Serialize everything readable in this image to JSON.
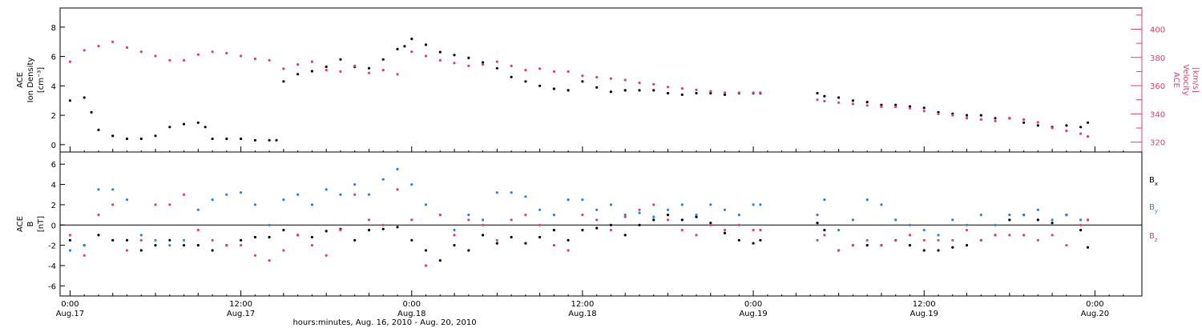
{
  "colors": {
    "black": "#000000",
    "pink": "#e0406a",
    "blue": "#2a84d8"
  },
  "x_axis": {
    "title": "hours:minutes, Aug. 16, 2010 - Aug. 20, 2010",
    "range_hours": [
      -0.7,
      75.3
    ],
    "ticks": [
      {
        "h": 0,
        "time": "0:00",
        "date": "Aug.17"
      },
      {
        "h": 12,
        "time": "12:00",
        "date": "Aug.17"
      },
      {
        "h": 24,
        "time": "0:00",
        "date": "Aug.18"
      },
      {
        "h": 36,
        "time": "12:00",
        "date": "Aug.18"
      },
      {
        "h": 48,
        "time": "0:00",
        "date": "Aug.19"
      },
      {
        "h": 60,
        "time": "12:00",
        "date": "Aug.19"
      },
      {
        "h": 72,
        "time": "0:00",
        "date": "Aug.20"
      }
    ]
  },
  "panels": {
    "top": {
      "left_label": [
        "ACE",
        "Ion Density",
        "[cm⁻³]"
      ],
      "right_label": [
        "ACE",
        "Velocity",
        "[km/s]"
      ],
      "left_ticks": [
        0,
        2,
        4,
        6,
        8
      ],
      "right_ticks": [
        320,
        340,
        360,
        380,
        400
      ]
    },
    "bottom": {
      "left_label": [
        "ACE",
        "B",
        "[nT]"
      ],
      "left_ticks": [
        -6,
        -4,
        -2,
        0,
        2,
        4,
        6
      ],
      "legend": [
        {
          "label": "B",
          "sub": "x",
          "color": "#000000"
        },
        {
          "label": "B",
          "sub": "y",
          "color": "#2a84d8"
        },
        {
          "label": "B",
          "sub": "z",
          "color": "#e0406a"
        }
      ]
    }
  },
  "chart_data": [
    {
      "type": "scatter",
      "ylabel": "ACE Ion Density [cm-3]",
      "y2label": "ACE Velocity [km/s]",
      "ylim": [
        -0.5,
        9.3
      ],
      "y2lim": [
        313,
        415
      ],
      "series": [
        {
          "name": "Ion Density",
          "axis": "left",
          "color": "#000000",
          "x": [
            0,
            1,
            1.5,
            2,
            3,
            4,
            5,
            6,
            7,
            8,
            9,
            9.5,
            10,
            11,
            12,
            13,
            14,
            14.5,
            15,
            16,
            17,
            18,
            19,
            20,
            21,
            22,
            23,
            23.5,
            24,
            25,
            26,
            27,
            28,
            29,
            30,
            31,
            32,
            33,
            34,
            35,
            36,
            37,
            38,
            39,
            40,
            41,
            42,
            43,
            44,
            45,
            46,
            47,
            48,
            48.5,
            52.5,
            53,
            54,
            55,
            56,
            57,
            58,
            59,
            60,
            61,
            62,
            63,
            64,
            65,
            66,
            67,
            68,
            69,
            70,
            71,
            71.5
          ],
          "y": [
            3,
            3.2,
            2.2,
            1,
            0.6,
            0.4,
            0.4,
            0.6,
            1.2,
            1.4,
            1.5,
            1.2,
            0.4,
            0.4,
            0.4,
            0.3,
            0.3,
            0.3,
            4.3,
            4.8,
            5,
            5.3,
            5.8,
            5.3,
            5.2,
            5.8,
            6.5,
            6.7,
            7.2,
            6.8,
            6.3,
            6.1,
            5.9,
            5.6,
            5.2,
            4.6,
            4.3,
            4,
            3.8,
            3.7,
            4.3,
            3.9,
            3.6,
            3.7,
            3.7,
            3.7,
            3.5,
            3.4,
            3.5,
            3.5,
            3.4,
            3.5,
            3.5,
            3.5,
            3.5,
            3.3,
            3.2,
            3.0,
            2.9,
            2.7,
            2.7,
            2.6,
            2.5,
            2.2,
            2.1,
            2.0,
            2.0,
            1.8,
            1.8,
            1.5,
            1.3,
            1.2,
            1.3,
            1.2,
            1.5
          ]
        },
        {
          "name": "Velocity",
          "axis": "right",
          "color": "#e0406a",
          "x": [
            0,
            1,
            2,
            3,
            4,
            5,
            6,
            7,
            8,
            9,
            10,
            11,
            12,
            13,
            14,
            15,
            16,
            17,
            18,
            19,
            20,
            21,
            22,
            23,
            24,
            25,
            26,
            27,
            28,
            29,
            30,
            31,
            32,
            33,
            34,
            35,
            36,
            37,
            38,
            39,
            40,
            41,
            42,
            43,
            44,
            45,
            46,
            47,
            48,
            48.5,
            52.5,
            53,
            54,
            55,
            56,
            57,
            58,
            59,
            60,
            61,
            62,
            63,
            64,
            65,
            66,
            67,
            68,
            69,
            70,
            71,
            71.5
          ],
          "y": [
            377,
            385,
            388,
            391,
            387,
            384,
            381,
            378,
            378,
            382,
            384,
            383,
            381,
            379,
            378,
            372,
            375,
            377,
            371,
            370,
            374,
            369,
            371,
            368,
            384,
            381,
            378,
            376,
            374,
            375,
            377,
            374,
            371,
            372,
            370,
            370,
            367,
            366,
            365,
            364,
            362,
            361,
            359,
            358,
            357,
            356,
            355,
            355,
            355,
            355,
            350,
            349,
            348,
            347,
            346,
            345,
            345,
            344,
            342,
            340,
            339,
            337,
            336,
            335,
            337,
            336,
            334,
            330,
            328,
            326,
            324
          ]
        }
      ]
    },
    {
      "type": "scatter",
      "ylabel": "ACE B [nT]",
      "ylim": [
        -7,
        7.2
      ],
      "series": [
        {
          "name": "Bx",
          "color": "#000000",
          "x": [
            0,
            1,
            2,
            3,
            4,
            5,
            6,
            7,
            8,
            9,
            10,
            11,
            12,
            13,
            14,
            15,
            16,
            17,
            18,
            19,
            20,
            21,
            22,
            23,
            24,
            25,
            26,
            27,
            28,
            29,
            30,
            31,
            32,
            33,
            34,
            35,
            36,
            37,
            38,
            39,
            40,
            41,
            42,
            43,
            44,
            45,
            46,
            47,
            48,
            48.5,
            52.5,
            53,
            54,
            55,
            56,
            57,
            58,
            59,
            60,
            61,
            62,
            63,
            64,
            65,
            66,
            67,
            68,
            69,
            70,
            71,
            71.5
          ],
          "y": [
            -1.5,
            -2.0,
            -1.0,
            -1.5,
            -1.5,
            -2.5,
            -2.0,
            -1.5,
            -2.0,
            -2.0,
            -2.5,
            -2.0,
            -1.5,
            -1.2,
            -1.2,
            -0.5,
            -1.0,
            -1.2,
            -0.6,
            -0.4,
            -1.5,
            -0.5,
            -0.4,
            -0.2,
            -1.5,
            -2.5,
            -3.5,
            -2.0,
            -2.5,
            -1.0,
            -1.8,
            -1.2,
            -1.8,
            -1.2,
            -0.5,
            -1.5,
            -0.5,
            -0.3,
            0,
            -1,
            0,
            0.5,
            1.0,
            0.5,
            0.8,
            0.2,
            -0.8,
            -1.5,
            -1.8,
            -1.5,
            0.2,
            -0.5,
            -2.5,
            -2.0,
            -2.0,
            -2.0,
            -1.5,
            -2.0,
            -2.5,
            -2.5,
            -2.2,
            -2.0,
            -1.5,
            -1.0,
            0.5,
            1.0,
            0.5,
            0.2,
            1.0,
            -0.5,
            -2.2
          ]
        },
        {
          "name": "By",
          "color": "#2a84d8",
          "x": [
            0,
            1,
            2,
            3,
            4,
            5,
            6,
            7,
            8,
            9,
            10,
            11,
            12,
            13,
            14,
            15,
            16,
            17,
            18,
            19,
            20,
            21,
            22,
            23,
            24,
            25,
            26,
            27,
            28,
            29,
            30,
            31,
            32,
            33,
            34,
            35,
            36,
            37,
            38,
            39,
            40,
            41,
            42,
            43,
            44,
            45,
            46,
            47,
            48,
            48.5,
            52.5,
            53,
            54,
            55,
            56,
            57,
            58,
            59,
            60,
            61,
            62,
            63,
            64,
            65,
            66,
            67,
            68,
            69,
            70,
            71,
            71.5
          ],
          "y": [
            -2.5,
            -2.0,
            3.5,
            3.5,
            2.5,
            -1.0,
            -1.5,
            -2.0,
            -1.5,
            1.5,
            2.5,
            3.0,
            3.2,
            2.0,
            0,
            2.5,
            3.0,
            2.0,
            3.5,
            3.0,
            4.0,
            3.0,
            4.5,
            5.5,
            4.0,
            2.0,
            1.0,
            -0.5,
            1.0,
            0.5,
            3.2,
            3.2,
            2.8,
            1.5,
            1.0,
            2.5,
            2.5,
            1.5,
            2.0,
            1.0,
            1.2,
            0.8,
            1.5,
            2.0,
            1.0,
            2.0,
            1.5,
            1.0,
            2.0,
            2.0,
            1.0,
            2.5,
            -0.5,
            0.5,
            2.5,
            2.0,
            0.5,
            0.0,
            -0.5,
            -1.0,
            0.5,
            0.0,
            1.0,
            0.0,
            1.0,
            1.0,
            1.5,
            0.5,
            1.0,
            0.5,
            0.5
          ]
        },
        {
          "name": "Bz",
          "color": "#e0406a",
          "x": [
            0,
            1,
            2,
            3,
            4,
            5,
            6,
            7,
            8,
            9,
            10,
            11,
            12,
            13,
            14,
            15,
            16,
            17,
            18,
            19,
            20,
            21,
            22,
            23,
            24,
            25,
            26,
            27,
            28,
            29,
            30,
            31,
            32,
            33,
            34,
            35,
            36,
            37,
            38,
            39,
            40,
            41,
            42,
            43,
            44,
            45,
            46,
            47,
            48,
            48.5,
            52.5,
            53,
            54,
            55,
            56,
            57,
            58,
            59,
            60,
            61,
            62,
            63,
            64,
            65,
            66,
            67,
            68,
            69,
            70,
            71,
            71.5
          ],
          "y": [
            -1.0,
            -3.0,
            1.0,
            2.0,
            -2.5,
            -1.5,
            2.0,
            2.0,
            3.0,
            -0.5,
            -1.5,
            -2.0,
            -2.0,
            -3.0,
            -3.5,
            -2.5,
            -1.0,
            -2.0,
            -3.0,
            -0.5,
            3.0,
            0.5,
            0.0,
            3.5,
            0.5,
            -4.0,
            1.0,
            -1.0,
            0.5,
            0.0,
            -1.5,
            0.5,
            1.0,
            0.0,
            -2.0,
            -2.5,
            1.0,
            0.5,
            -0.5,
            0.8,
            1.5,
            2.0,
            0.5,
            -0.5,
            -1.0,
            0.0,
            -0.5,
            0.0,
            -0.5,
            -0.5,
            -1.5,
            -1.0,
            -2.5,
            -2.0,
            -1.5,
            -2.0,
            -1.5,
            -1.0,
            -1.5,
            -1.5,
            -1.5,
            -0.5,
            -1.5,
            -1.0,
            -1.0,
            -1.0,
            -1.5,
            -1.0,
            -2.0,
            0.0,
            0.5
          ]
        }
      ]
    }
  ]
}
